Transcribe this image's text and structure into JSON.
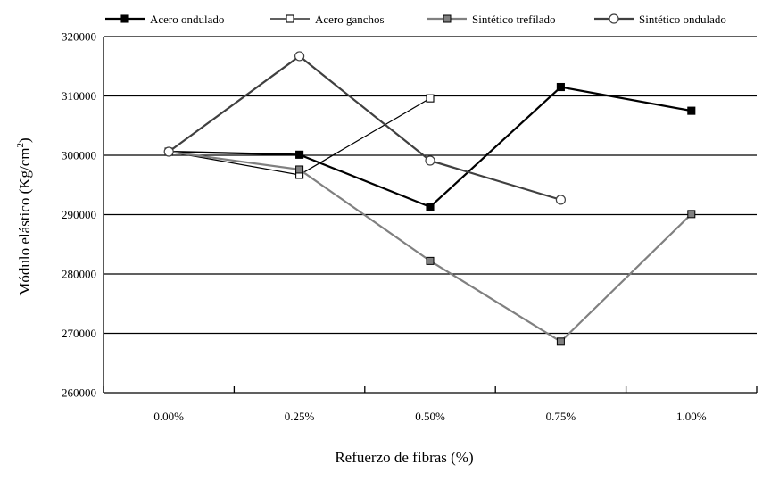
{
  "chart_data": {
    "type": "line",
    "xlabel": "Refuerzo de fibras (%)",
    "ylabel_main": "Módulo elástico (Kg/cm",
    "ylabel_sup": "2",
    "ylabel_close": ")",
    "categories": [
      "0.00%",
      "0.25%",
      "0.50%",
      "0.75%",
      "1.00%"
    ],
    "ylim": [
      260000,
      320000
    ],
    "yticks": [
      260000,
      270000,
      280000,
      290000,
      300000,
      310000,
      320000
    ],
    "grid": "horizontal",
    "legend_position": "top",
    "series": [
      {
        "name": "Acero ondulado",
        "color": "#000000",
        "marker": "filled-square",
        "marker_fill": "#000000",
        "values": [
          300600,
          300100,
          291300,
          311500,
          307500
        ]
      },
      {
        "name": "Acero ganchos",
        "color": "#000000",
        "marker": "open-square",
        "marker_fill": "#ffffff",
        "values": [
          300600,
          296700,
          309600,
          null,
          null
        ]
      },
      {
        "name": "Sintético trefilado",
        "color": "#808080",
        "marker": "gray-square",
        "marker_fill": "#808080",
        "values": [
          300600,
          297600,
          282200,
          268600,
          290100
        ]
      },
      {
        "name": "Sintético ondulado",
        "color": "#404040",
        "marker": "open-circle",
        "marker_fill": "#ffffff",
        "values": [
          300600,
          316700,
          299100,
          292500,
          null
        ]
      }
    ]
  }
}
